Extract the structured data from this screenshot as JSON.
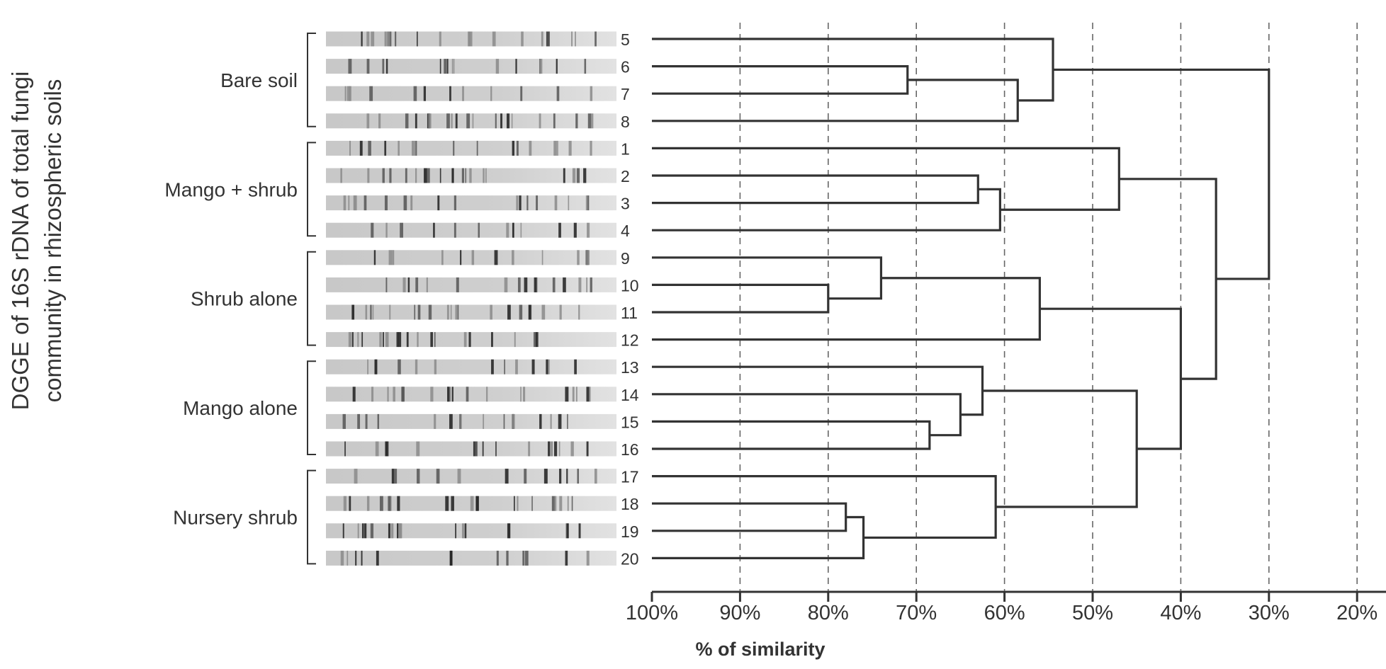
{
  "figure": {
    "vertical_title": [
      "DGGE of 16S rDNA of total fungi",
      "community in rhizospheric soils"
    ],
    "xlabel": "% of similarity",
    "colors": {
      "ink": "#333333",
      "grid": "#666666",
      "lane_bg": "#d4d4d4"
    }
  },
  "groups": [
    {
      "label": "Bare soil",
      "lanes": [
        "5",
        "6",
        "7",
        "8"
      ]
    },
    {
      "label": "Mango + shrub",
      "lanes": [
        "1",
        "2",
        "3",
        "4"
      ]
    },
    {
      "label": "Shrub alone",
      "lanes": [
        "9",
        "10",
        "11",
        "12"
      ]
    },
    {
      "label": "Mango alone",
      "lanes": [
        "13",
        "14",
        "15",
        "16"
      ]
    },
    {
      "label": "Nursery shrub",
      "lanes": [
        "17",
        "18",
        "19",
        "20"
      ]
    }
  ],
  "chart_data": {
    "type": "dendrogram",
    "xlabel": "% of similarity",
    "ticks": [
      "100%",
      "90%",
      "80%",
      "70%",
      "60%",
      "50%",
      "40%",
      "30%",
      "20%"
    ],
    "tick_values": [
      100,
      90,
      80,
      70,
      60,
      50,
      40,
      30,
      20
    ],
    "leaves": [
      "5",
      "6",
      "7",
      "8",
      "1",
      "2",
      "3",
      "4",
      "9",
      "10",
      "11",
      "12",
      "13",
      "14",
      "15",
      "16",
      "17",
      "18",
      "19",
      "20"
    ],
    "merges": [
      {
        "a": "10",
        "b": "11",
        "similarity": 80
      },
      {
        "a": "9",
        "b": "10-11",
        "similarity": 74
      },
      {
        "a": "18",
        "b": "19",
        "similarity": 78
      },
      {
        "a": "18-19",
        "b": "20",
        "similarity": 76
      },
      {
        "a": "6",
        "b": "7",
        "similarity": 71
      },
      {
        "a": "15",
        "b": "16",
        "similarity": 68.5
      },
      {
        "a": "14",
        "b": "15-16",
        "similarity": 65
      },
      {
        "a": "2",
        "b": "3",
        "similarity": 63
      },
      {
        "a": "13",
        "b": "14-16",
        "similarity": 62.5
      },
      {
        "a": "17",
        "b": "18-20",
        "similarity": 61
      },
      {
        "a": "2-3",
        "b": "4",
        "similarity": 60.5
      },
      {
        "a": "6-7",
        "b": "8",
        "similarity": 58.5
      },
      {
        "a": "9-11",
        "b": "12",
        "similarity": 56
      },
      {
        "a": "5",
        "b": "6-8",
        "similarity": 54.5
      },
      {
        "a": "1",
        "b": "2-4",
        "similarity": 47
      },
      {
        "a": "13-16",
        "b": "17-20",
        "similarity": 45
      },
      {
        "a": "9-12",
        "b": "13-20",
        "similarity": 40
      },
      {
        "a": "1-4",
        "b": "9-20",
        "similarity": 36
      },
      {
        "a": "5-8",
        "b": "1-4,9-20",
        "similarity": 30
      }
    ]
  }
}
